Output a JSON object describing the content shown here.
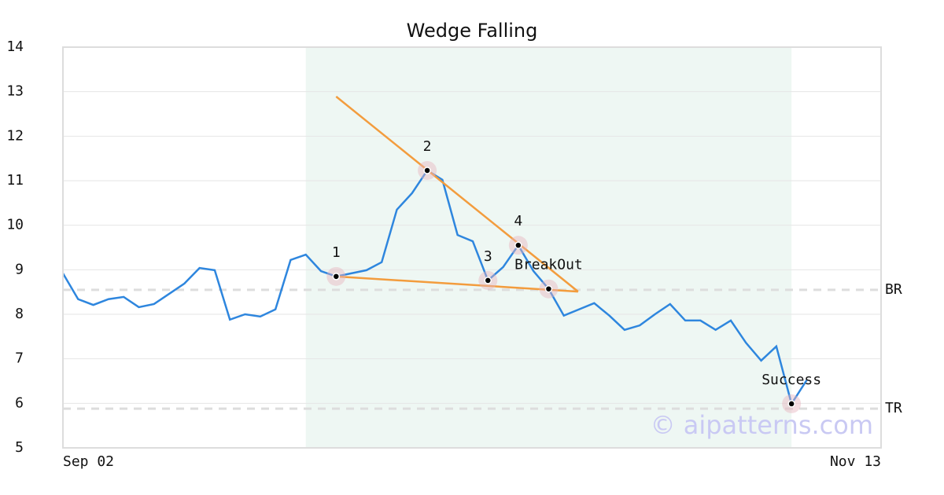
{
  "chart_data": {
    "type": "line",
    "title": "Wedge Falling",
    "x": [
      0,
      1,
      2,
      3,
      4,
      5,
      6,
      7,
      8,
      9,
      10,
      11,
      12,
      13,
      14,
      15,
      16,
      17,
      18,
      19,
      20,
      21,
      22,
      23,
      24,
      25,
      26,
      27,
      28,
      29,
      30,
      31,
      32,
      33,
      34,
      35,
      36,
      37,
      38,
      39,
      40,
      41,
      42,
      43,
      44,
      45,
      46,
      47,
      48,
      49
    ],
    "series": [
      {
        "color": "#2e86de",
        "values": [
          8.92,
          8.34,
          8.21,
          8.34,
          8.39,
          8.16,
          8.23,
          8.46,
          8.69,
          9.04,
          8.99,
          7.88,
          8.0,
          7.95,
          8.11,
          9.22,
          9.34,
          8.97,
          8.85,
          8.92,
          8.99,
          9.17,
          10.35,
          10.72,
          11.23,
          11.02,
          9.78,
          9.64,
          8.76,
          9.06,
          9.55,
          8.97,
          8.57,
          7.97,
          8.11,
          8.25,
          7.97,
          7.65,
          7.75,
          8.0,
          8.23,
          7.86,
          7.86,
          7.65,
          7.86,
          7.36,
          6.96,
          7.28,
          5.99,
          6.52
        ]
      }
    ],
    "xlim": [
      0,
      53.9
    ],
    "xticks": [
      {
        "value": 0,
        "label": "Sep 02"
      },
      {
        "value": 53.9,
        "label": "Nov 13"
      }
    ],
    "ylim": [
      5,
      14
    ],
    "yticks": [
      5,
      6,
      7,
      8,
      9,
      10,
      11,
      12,
      13,
      14
    ],
    "grid": true,
    "highlight": [
      16,
      48
    ],
    "highlight_color": "#eef7f3",
    "points": [
      {
        "x": 18,
        "label": "1"
      },
      {
        "x": 24,
        "label": "2"
      },
      {
        "x": 28,
        "label": "3"
      },
      {
        "x": 30,
        "label": "4"
      },
      {
        "x": 32,
        "label": "BreakOut"
      },
      {
        "x": 48,
        "label": "Success"
      }
    ],
    "trend_lines": [
      {
        "x": [
          18,
          33.94
        ],
        "y": [
          12.89,
          8.51
        ]
      },
      {
        "x": [
          18,
          33.94
        ],
        "y": [
          8.85,
          8.51
        ]
      }
    ],
    "trend_color": "#f39c3d",
    "levels": [
      {
        "label": "BR",
        "value": 8.55
      },
      {
        "label": "TR",
        "value": 5.88
      }
    ],
    "watermark": "© aipatterns.com"
  }
}
